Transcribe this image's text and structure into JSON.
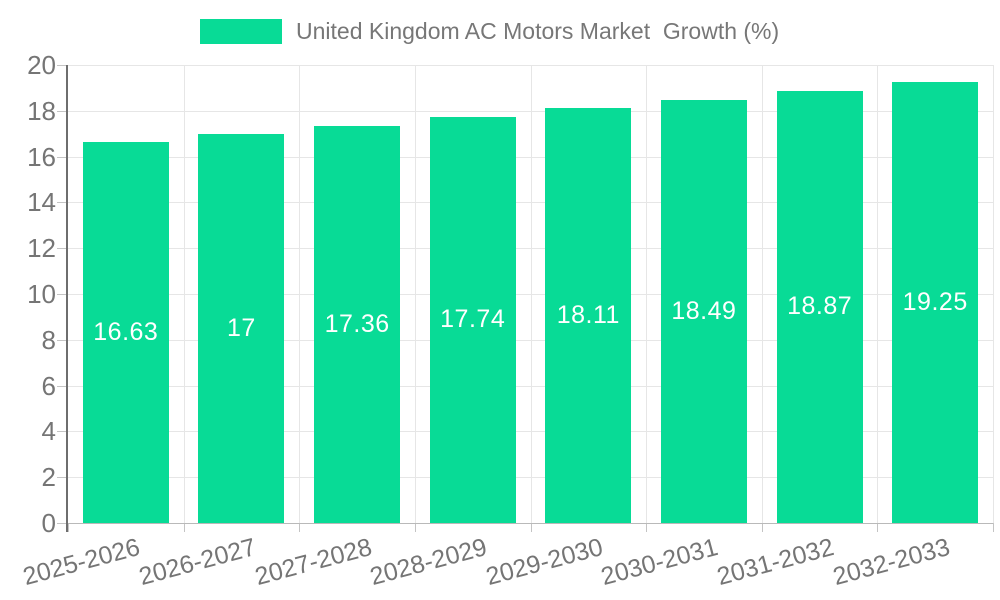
{
  "chart_data": {
    "type": "bar",
    "legend": "United Kingdom AC Motors Market  Growth (%)",
    "categories": [
      "2025-2026",
      "2026-2027",
      "2027-2028",
      "2028-2029",
      "2029-2030",
      "2030-2031",
      "2031-2032",
      "2032-2033"
    ],
    "values": [
      16.63,
      17,
      17.36,
      17.74,
      18.11,
      18.49,
      18.87,
      19.25
    ],
    "value_labels": [
      "16.63",
      "17",
      "17.36",
      "17.74",
      "18.11",
      "18.49",
      "18.87",
      "19.25"
    ],
    "ylim": [
      0,
      20
    ],
    "ytick_step": 2,
    "ytick_labels": [
      "0",
      "2",
      "4",
      "6",
      "8",
      "10",
      "12",
      "14",
      "16",
      "18",
      "20"
    ],
    "grid": true,
    "legend_position": "top-center",
    "colors": {
      "bar": "#08DB96",
      "value_label": "#ffffff",
      "axis_text": "#757575",
      "grid_line": "#e6e6e6",
      "y_axis_line": "#6e6e6e",
      "x_axis_line": "#b9b9b9",
      "tick": "#c4c4c4",
      "legend_text": "#777777"
    }
  }
}
